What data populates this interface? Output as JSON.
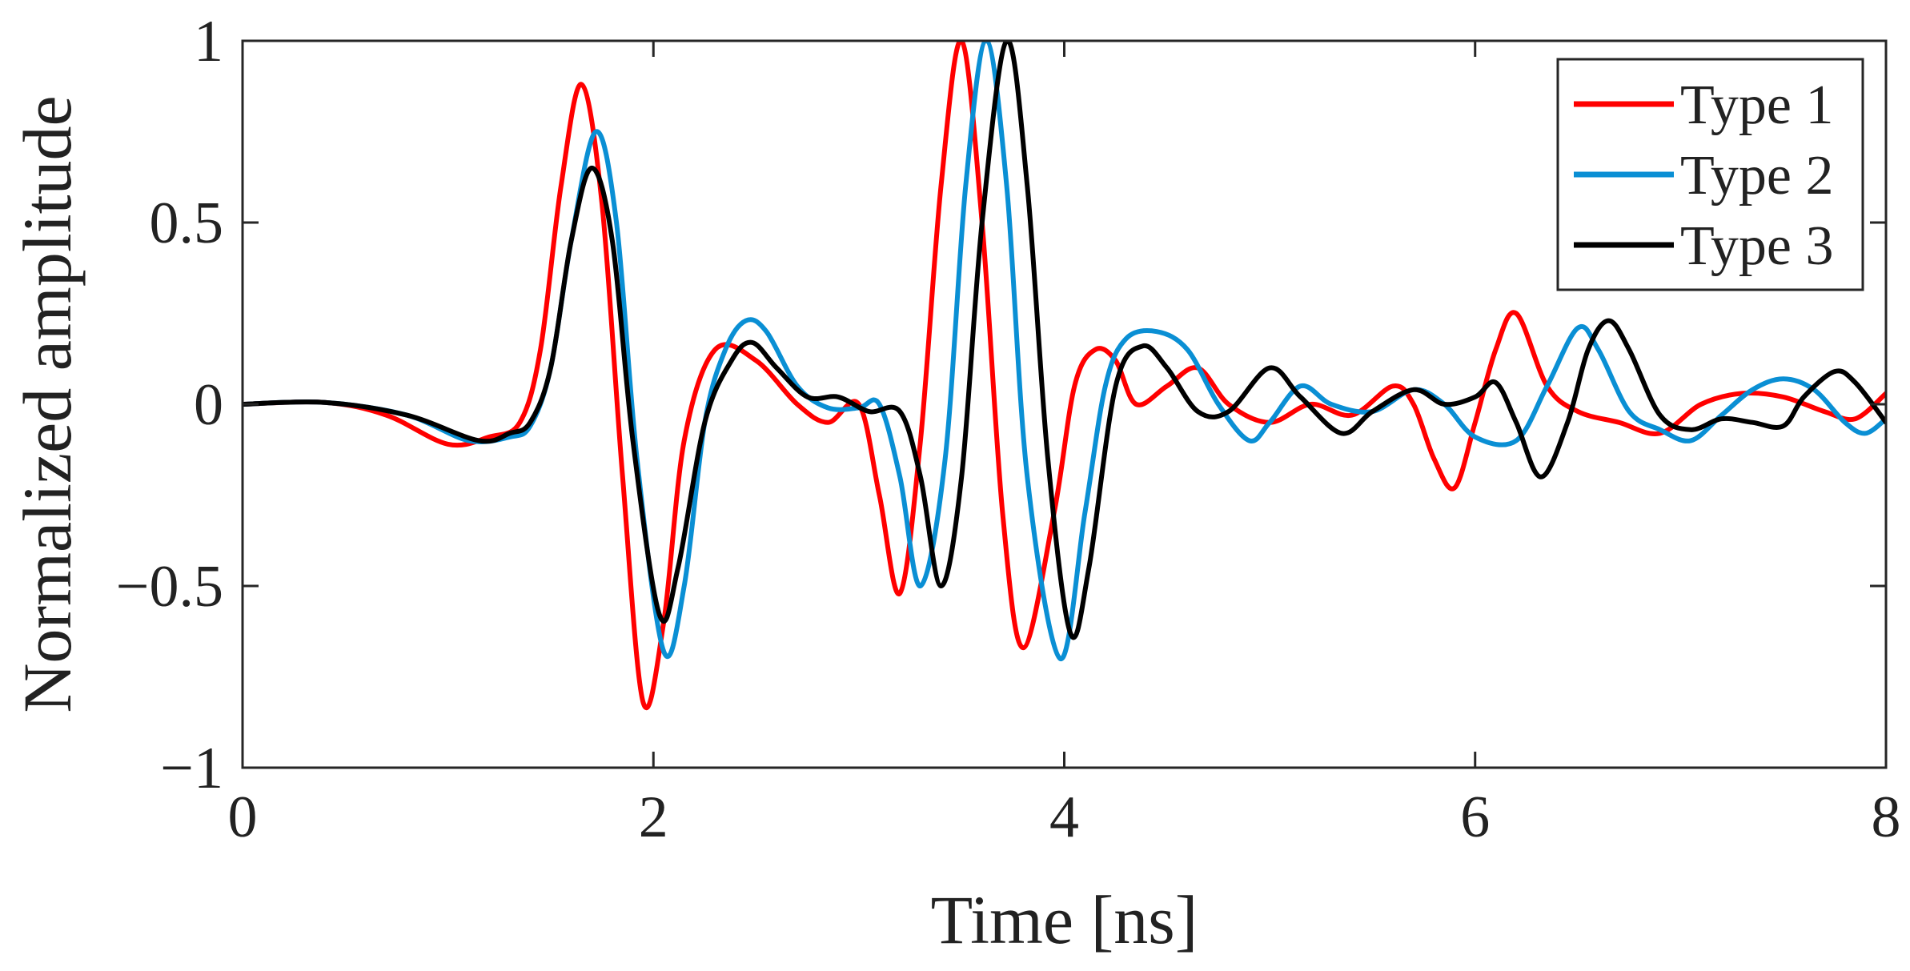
{
  "chart_data": {
    "type": "line",
    "title": "",
    "xlabel": "Time [ns]",
    "ylabel": "Normalized amplitude",
    "xlim": [
      0,
      8
    ],
    "ylim": [
      -1,
      1
    ],
    "xticks": [
      0,
      2,
      4,
      6,
      8
    ],
    "xtick_labels": [
      "0",
      "2",
      "4",
      "6",
      "8"
    ],
    "yticks": [
      -1,
      -0.5,
      0,
      0.5,
      1
    ],
    "ytick_labels": [
      "−1",
      "−0.5",
      "0",
      "0.5",
      "1"
    ],
    "grid": false,
    "legend_position": "top-right",
    "series": [
      {
        "name": "Type 1",
        "color": "#ff0000",
        "points": [
          [
            0,
            0.0
          ],
          [
            0.4,
            0.005
          ],
          [
            0.7,
            -0.03
          ],
          [
            1.0,
            -0.11
          ],
          [
            1.2,
            -0.09
          ],
          [
            1.35,
            -0.05
          ],
          [
            1.45,
            0.15
          ],
          [
            1.55,
            0.6
          ],
          [
            1.65,
            0.88
          ],
          [
            1.75,
            0.55
          ],
          [
            1.85,
            -0.2
          ],
          [
            1.95,
            -0.82
          ],
          [
            2.05,
            -0.6
          ],
          [
            2.15,
            -0.1
          ],
          [
            2.3,
            0.15
          ],
          [
            2.5,
            0.12
          ],
          [
            2.7,
            0.0
          ],
          [
            2.85,
            -0.05
          ],
          [
            3.0,
            0.0
          ],
          [
            3.1,
            -0.25
          ],
          [
            3.2,
            -0.52
          ],
          [
            3.3,
            -0.1
          ],
          [
            3.4,
            0.6
          ],
          [
            3.5,
            1.0
          ],
          [
            3.6,
            0.5
          ],
          [
            3.7,
            -0.3
          ],
          [
            3.8,
            -0.67
          ],
          [
            3.95,
            -0.3
          ],
          [
            4.05,
            0.05
          ],
          [
            4.15,
            0.15
          ],
          [
            4.25,
            0.12
          ],
          [
            4.35,
            0.0
          ],
          [
            4.5,
            0.05
          ],
          [
            4.65,
            0.1
          ],
          [
            4.8,
            0.0
          ],
          [
            5.0,
            -0.05
          ],
          [
            5.2,
            0.0
          ],
          [
            5.4,
            -0.03
          ],
          [
            5.6,
            0.05
          ],
          [
            5.7,
            0.0
          ],
          [
            5.8,
            -0.15
          ],
          [
            5.9,
            -0.23
          ],
          [
            6.0,
            -0.05
          ],
          [
            6.1,
            0.15
          ],
          [
            6.2,
            0.25
          ],
          [
            6.35,
            0.05
          ],
          [
            6.5,
            -0.02
          ],
          [
            6.7,
            -0.05
          ],
          [
            6.9,
            -0.08
          ],
          [
            7.1,
            0.0
          ],
          [
            7.3,
            0.03
          ],
          [
            7.5,
            0.02
          ],
          [
            7.7,
            -0.02
          ],
          [
            7.85,
            -0.04
          ],
          [
            8.0,
            0.03
          ]
        ]
      },
      {
        "name": "Type 2",
        "color": "#0a8fd4",
        "points": [
          [
            0,
            0.0
          ],
          [
            0.4,
            0.005
          ],
          [
            0.8,
            -0.03
          ],
          [
            1.1,
            -0.1
          ],
          [
            1.3,
            -0.09
          ],
          [
            1.4,
            -0.06
          ],
          [
            1.5,
            0.1
          ],
          [
            1.6,
            0.45
          ],
          [
            1.72,
            0.75
          ],
          [
            1.82,
            0.5
          ],
          [
            1.92,
            -0.15
          ],
          [
            2.05,
            -0.68
          ],
          [
            2.15,
            -0.5
          ],
          [
            2.25,
            -0.05
          ],
          [
            2.35,
            0.15
          ],
          [
            2.45,
            0.23
          ],
          [
            2.55,
            0.2
          ],
          [
            2.7,
            0.05
          ],
          [
            2.85,
            -0.01
          ],
          [
            3.0,
            -0.01
          ],
          [
            3.1,
            0.0
          ],
          [
            3.2,
            -0.2
          ],
          [
            3.3,
            -0.5
          ],
          [
            3.42,
            -0.15
          ],
          [
            3.52,
            0.6
          ],
          [
            3.62,
            1.0
          ],
          [
            3.72,
            0.6
          ],
          [
            3.82,
            -0.2
          ],
          [
            3.98,
            -0.7
          ],
          [
            4.1,
            -0.3
          ],
          [
            4.2,
            0.05
          ],
          [
            4.3,
            0.18
          ],
          [
            4.45,
            0.2
          ],
          [
            4.6,
            0.15
          ],
          [
            4.75,
            0.0
          ],
          [
            4.9,
            -0.1
          ],
          [
            5.0,
            -0.05
          ],
          [
            5.15,
            0.05
          ],
          [
            5.3,
            0.0
          ],
          [
            5.5,
            -0.02
          ],
          [
            5.7,
            0.04
          ],
          [
            5.85,
            0.0
          ],
          [
            6.0,
            -0.09
          ],
          [
            6.2,
            -0.1
          ],
          [
            6.35,
            0.05
          ],
          [
            6.5,
            0.21
          ],
          [
            6.6,
            0.15
          ],
          [
            6.75,
            -0.02
          ],
          [
            6.9,
            -0.07
          ],
          [
            7.05,
            -0.1
          ],
          [
            7.2,
            -0.03
          ],
          [
            7.35,
            0.04
          ],
          [
            7.5,
            0.07
          ],
          [
            7.65,
            0.04
          ],
          [
            7.8,
            -0.05
          ],
          [
            7.9,
            -0.08
          ],
          [
            8.0,
            -0.04
          ]
        ]
      },
      {
        "name": "Type 3",
        "color": "#000000",
        "points": [
          [
            0,
            0.0
          ],
          [
            0.4,
            0.005
          ],
          [
            0.8,
            -0.03
          ],
          [
            1.15,
            -0.1
          ],
          [
            1.3,
            -0.08
          ],
          [
            1.4,
            -0.05
          ],
          [
            1.5,
            0.1
          ],
          [
            1.6,
            0.45
          ],
          [
            1.7,
            0.65
          ],
          [
            1.8,
            0.45
          ],
          [
            1.9,
            -0.1
          ],
          [
            2.03,
            -0.58
          ],
          [
            2.12,
            -0.45
          ],
          [
            2.25,
            -0.05
          ],
          [
            2.38,
            0.12
          ],
          [
            2.48,
            0.17
          ],
          [
            2.6,
            0.1
          ],
          [
            2.75,
            0.02
          ],
          [
            2.9,
            0.02
          ],
          [
            3.05,
            -0.02
          ],
          [
            3.2,
            -0.02
          ],
          [
            3.3,
            -0.2
          ],
          [
            3.4,
            -0.5
          ],
          [
            3.5,
            -0.2
          ],
          [
            3.6,
            0.5
          ],
          [
            3.72,
            1.0
          ],
          [
            3.82,
            0.6
          ],
          [
            3.92,
            -0.15
          ],
          [
            4.03,
            -0.63
          ],
          [
            4.12,
            -0.45
          ],
          [
            4.25,
            0.05
          ],
          [
            4.38,
            0.16
          ],
          [
            4.5,
            0.1
          ],
          [
            4.65,
            -0.02
          ],
          [
            4.8,
            -0.02
          ],
          [
            5.0,
            0.1
          ],
          [
            5.15,
            0.02
          ],
          [
            5.35,
            -0.08
          ],
          [
            5.5,
            -0.02
          ],
          [
            5.7,
            0.04
          ],
          [
            5.85,
            0.0
          ],
          [
            6.0,
            0.02
          ],
          [
            6.1,
            0.06
          ],
          [
            6.2,
            -0.05
          ],
          [
            6.32,
            -0.2
          ],
          [
            6.45,
            -0.05
          ],
          [
            6.55,
            0.15
          ],
          [
            6.65,
            0.23
          ],
          [
            6.75,
            0.15
          ],
          [
            6.9,
            -0.03
          ],
          [
            7.05,
            -0.07
          ],
          [
            7.2,
            -0.04
          ],
          [
            7.35,
            -0.05
          ],
          [
            7.5,
            -0.06
          ],
          [
            7.6,
            0.02
          ],
          [
            7.75,
            0.09
          ],
          [
            7.85,
            0.06
          ],
          [
            8.0,
            -0.05
          ]
        ]
      }
    ]
  }
}
